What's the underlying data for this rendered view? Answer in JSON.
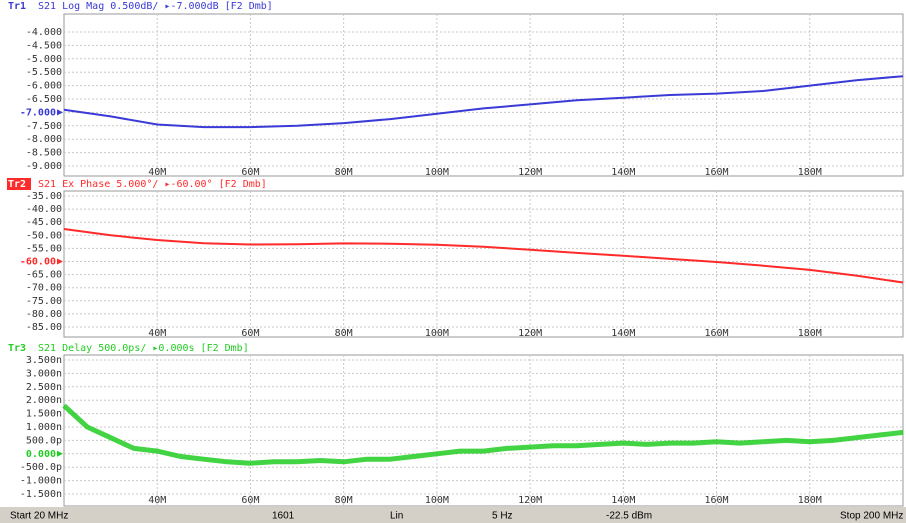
{
  "chart_data": [
    {
      "type": "line",
      "trace_label": "Tr1",
      "title": "S21 Log Mag 0.500dB/ ▸-7.000dB [F2 Dmb]",
      "color": "#3a3ad6",
      "ref": -7,
      "x": [
        20,
        30,
        40,
        50,
        60,
        70,
        80,
        90,
        100,
        110,
        120,
        130,
        140,
        150,
        160,
        170,
        180,
        190,
        200
      ],
      "values": [
        -6.9,
        -7.15,
        -7.45,
        -7.55,
        -7.55,
        -7.5,
        -7.4,
        -7.25,
        -7.05,
        -6.85,
        -6.7,
        -6.55,
        -6.45,
        -6.35,
        -6.3,
        -6.2,
        -6.0,
        -5.8,
        -5.65
      ],
      "xlim": [
        20,
        200
      ],
      "xticks": [
        {
          "value": 40,
          "label": "40M"
        },
        {
          "value": 60,
          "label": "60M"
        },
        {
          "value": 80,
          "label": "80M"
        },
        {
          "value": 100,
          "label": "100M"
        },
        {
          "value": 120,
          "label": "120M"
        },
        {
          "value": 140,
          "label": "140M"
        },
        {
          "value": 160,
          "label": "160M"
        },
        {
          "value": 180,
          "label": "180M"
        }
      ],
      "ylim": [
        -9,
        -4
      ],
      "yticks": [
        {
          "value": -4,
          "label": "-4.000"
        },
        {
          "value": -4.5,
          "label": "-4.500"
        },
        {
          "value": -5,
          "label": "-5.000"
        },
        {
          "value": -5.5,
          "label": "-5.500"
        },
        {
          "value": -6,
          "label": "-6.000"
        },
        {
          "value": -6.5,
          "label": "-6.500"
        },
        {
          "value": -7,
          "label": "-7.000"
        },
        {
          "value": -7.5,
          "label": "-7.500"
        },
        {
          "value": -8,
          "label": "-8.000"
        },
        {
          "value": -8.5,
          "label": "-8.500"
        },
        {
          "value": -9,
          "label": "-9.000"
        }
      ],
      "grid": true
    },
    {
      "type": "line",
      "trace_label": "Tr2",
      "title": "S21 Ex Phase 5.000°/ ▸-60.00° [F2 Dmb]",
      "color": "#ff2a2a",
      "ref": -60,
      "x": [
        20,
        30,
        40,
        50,
        60,
        70,
        80,
        90,
        100,
        110,
        120,
        130,
        140,
        150,
        160,
        170,
        180,
        190,
        200
      ],
      "values": [
        -47.6,
        -50.0,
        -51.8,
        -53.0,
        -53.5,
        -53.4,
        -53.1,
        -53.2,
        -53.6,
        -54.4,
        -55.5,
        -56.7,
        -57.8,
        -59.0,
        -60.2,
        -61.6,
        -63.2,
        -65.4,
        -68.0
      ],
      "xlim": [
        20,
        200
      ],
      "xticks": [
        {
          "value": 40,
          "label": "40M"
        },
        {
          "value": 60,
          "label": "60M"
        },
        {
          "value": 80,
          "label": "80M"
        },
        {
          "value": 100,
          "label": "100M"
        },
        {
          "value": 120,
          "label": "120M"
        },
        {
          "value": 140,
          "label": "140M"
        },
        {
          "value": 160,
          "label": "160M"
        },
        {
          "value": 180,
          "label": "180M"
        }
      ],
      "ylim": [
        -85,
        -35
      ],
      "yticks": [
        {
          "value": -35,
          "label": "-35.00"
        },
        {
          "value": -40,
          "label": "-40.00"
        },
        {
          "value": -45,
          "label": "-45.00"
        },
        {
          "value": -50,
          "label": "-50.00"
        },
        {
          "value": -55,
          "label": "-55.00"
        },
        {
          "value": -60,
          "label": "-60.00"
        },
        {
          "value": -65,
          "label": "-65.00"
        },
        {
          "value": -70,
          "label": "-70.00"
        },
        {
          "value": -75,
          "label": "-75.00"
        },
        {
          "value": -80,
          "label": "-80.00"
        },
        {
          "value": -85,
          "label": "-85.00"
        }
      ],
      "grid": true
    },
    {
      "type": "line",
      "trace_label": "Tr3",
      "title": "S21 Delay 500.0ps/ ▸0.000s [F2 Dmb]",
      "color": "#22cc22",
      "ref": 0,
      "x": [
        20,
        25,
        30,
        35,
        40,
        45,
        50,
        55,
        60,
        65,
        70,
        75,
        80,
        85,
        90,
        95,
        100,
        105,
        110,
        115,
        120,
        125,
        130,
        135,
        140,
        145,
        150,
        155,
        160,
        165,
        170,
        175,
        180,
        185,
        190,
        195,
        200
      ],
      "values": [
        1.8,
        1.0,
        0.6,
        0.2,
        0.1,
        -0.1,
        -0.2,
        -0.3,
        -0.35,
        -0.3,
        -0.3,
        -0.25,
        -0.3,
        -0.2,
        -0.2,
        -0.1,
        0.0,
        0.1,
        0.1,
        0.2,
        0.25,
        0.3,
        0.3,
        0.35,
        0.4,
        0.35,
        0.4,
        0.4,
        0.45,
        0.4,
        0.45,
        0.5,
        0.45,
        0.5,
        0.6,
        0.7,
        0.8
      ],
      "xlim": [
        20,
        200
      ],
      "xticks": [
        {
          "value": 40,
          "label": "40M"
        },
        {
          "value": 60,
          "label": "60M"
        },
        {
          "value": 80,
          "label": "80M"
        },
        {
          "value": 100,
          "label": "100M"
        },
        {
          "value": 120,
          "label": "120M"
        },
        {
          "value": 140,
          "label": "140M"
        },
        {
          "value": 160,
          "label": "160M"
        },
        {
          "value": 180,
          "label": "180M"
        }
      ],
      "ylim": [
        -1.5,
        3.5
      ],
      "yticks": [
        {
          "value": 3.5,
          "label": "3.500n"
        },
        {
          "value": 3,
          "label": "3.000n"
        },
        {
          "value": 2.5,
          "label": "2.500n"
        },
        {
          "value": 2,
          "label": "2.000n"
        },
        {
          "value": 1.5,
          "label": "1.500n"
        },
        {
          "value": 1,
          "label": "1.000n"
        },
        {
          "value": 0.5,
          "label": "500.0p"
        },
        {
          "value": 0,
          "label": "0.000"
        },
        {
          "value": -0.5,
          "label": "-500.0p"
        },
        {
          "value": -1,
          "label": "-1.000n"
        },
        {
          "value": -1.5,
          "label": "-1.500n"
        }
      ],
      "grid": true
    }
  ],
  "status": {
    "start": "Start 20 MHz",
    "points": "1601",
    "sweep_type": "Lin",
    "ifbw": "5 Hz",
    "power": "-22.5 dBm",
    "stop": "Stop 200 MHz"
  }
}
